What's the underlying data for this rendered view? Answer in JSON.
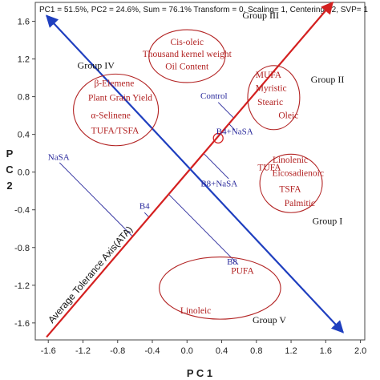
{
  "chart_data": {
    "type": "scatter",
    "header": "PC1 = 51.5%, PC2 = 24.6%, Sum = 76.1% Transform = 0, Scaling= 1, Centering= 2, SVP= 1",
    "xlabel": "P C 1",
    "ylabel": "P C 2",
    "xlim": [
      -1.75,
      2.05
    ],
    "ylim": [
      -1.78,
      1.8
    ],
    "xticks": [
      -1.6,
      -1.2,
      -0.8,
      -0.4,
      0.0,
      0.4,
      0.8,
      1.2,
      1.6,
      2.0
    ],
    "yticks": [
      1.6,
      1.2,
      0.8,
      0.4,
      0.0,
      -0.4,
      -0.8,
      -1.2,
      -1.6
    ],
    "ata_label": "Average Tolerance Axis(ATA)",
    "colors": {
      "ata": "#d42020",
      "axis_line": "#1f3fbf",
      "treatment": "#2a2a9c",
      "trait": "#b22222",
      "ellipse": "#b22222"
    },
    "ata_axis": {
      "from": [
        -1.62,
        -1.75
      ],
      "to": [
        1.68,
        1.8
      ]
    },
    "perpendicular_axis": {
      "from": [
        -1.62,
        1.66
      ],
      "to": [
        1.8,
        -1.7
      ]
    },
    "ata_marker": [
      0.36,
      0.36
    ],
    "treatments": [
      {
        "name": "Control",
        "x": 0.36,
        "y": 0.74,
        "label_dx": -0.05,
        "label_dy": 0.04
      },
      {
        "name": "B4+NaSA",
        "x": 0.55,
        "y": 0.45,
        "label_dx": 0.0,
        "label_dy": -0.05
      },
      {
        "name": "NaSA",
        "x": -1.47,
        "y": 0.1,
        "label_dx": -0.01,
        "label_dy": 0.03
      },
      {
        "name": "B8+NaSA",
        "x": 0.48,
        "y": -0.07,
        "label_dx": -0.11,
        "label_dy": -0.08
      },
      {
        "name": "B4",
        "x": -0.49,
        "y": -0.43,
        "label_dx": 0.0,
        "label_dy": 0.04
      },
      {
        "name": "B8",
        "x": 0.59,
        "y": -0.98,
        "label_dx": -0.07,
        "label_dy": 0.0
      }
    ],
    "traits": [
      {
        "name": "Cis-oleic",
        "x": 0.0,
        "y": 1.35
      },
      {
        "name": "Thousand kernel weight",
        "x": 0.0,
        "y": 1.22
      },
      {
        "name": "Oil Content",
        "x": 0.0,
        "y": 1.09
      },
      {
        "name": "MUFA",
        "x": 0.94,
        "y": 1.0
      },
      {
        "name": "Myristic",
        "x": 0.97,
        "y": 0.86
      },
      {
        "name": "Stearic",
        "x": 0.96,
        "y": 0.71
      },
      {
        "name": "Oleic",
        "x": 1.17,
        "y": 0.57
      },
      {
        "name": "β-Elemene",
        "x": -0.84,
        "y": 0.91
      },
      {
        "name": "Plant Grain Yield",
        "x": -0.77,
        "y": 0.76
      },
      {
        "name": "α-Selinene",
        "x": -0.88,
        "y": 0.57
      },
      {
        "name": "TUFA/TSFA",
        "x": -0.83,
        "y": 0.41
      },
      {
        "name": "Linolenic",
        "x": 1.19,
        "y": 0.1
      },
      {
        "name": "TUFA",
        "x": 0.95,
        "y": 0.02
      },
      {
        "name": "Eicosadienoic",
        "x": 1.28,
        "y": -0.04
      },
      {
        "name": "TSFA",
        "x": 1.19,
        "y": -0.21
      },
      {
        "name": "Palmitic",
        "x": 1.3,
        "y": -0.36
      },
      {
        "name": "PUFA",
        "x": 0.64,
        "y": -1.08
      },
      {
        "name": "Linoleic",
        "x": 0.1,
        "y": -1.5
      }
    ],
    "groups": [
      {
        "name": "Group III",
        "label_x": 0.85,
        "label_y": 1.63,
        "cx": 0.0,
        "cy": 1.23,
        "rx": 0.44,
        "ry": 0.28
      },
      {
        "name": "Group IV",
        "label_x": -1.05,
        "label_y": 1.1,
        "cx": -0.82,
        "cy": 0.66,
        "rx": 0.49,
        "ry": 0.38
      },
      {
        "name": "Group II",
        "label_x": 1.62,
        "label_y": 0.95,
        "cx": 1.0,
        "cy": 0.79,
        "rx": 0.3,
        "ry": 0.34
      },
      {
        "name": "Group I",
        "label_x": 1.62,
        "label_y": -0.55,
        "cx": 1.2,
        "cy": -0.12,
        "rx": 0.36,
        "ry": 0.31
      },
      {
        "name": "Group V",
        "label_x": 0.95,
        "label_y": -1.6,
        "cx": 0.38,
        "cy": -1.23,
        "rx": 0.7,
        "ry": 0.33
      }
    ]
  }
}
